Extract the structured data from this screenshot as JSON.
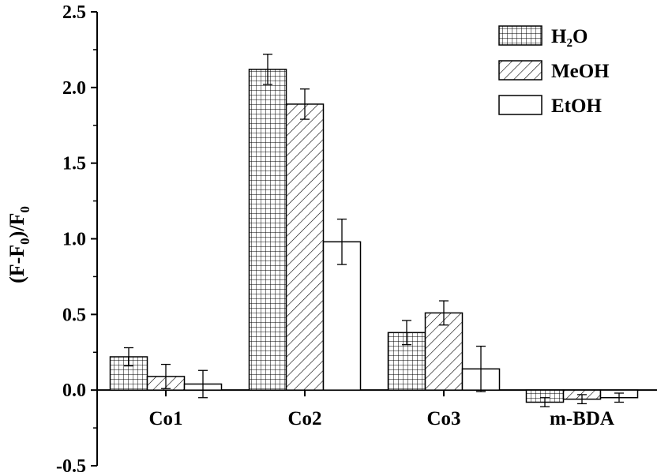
{
  "chart_data": {
    "type": "bar",
    "categories": [
      "Co1",
      "Co2",
      "Co3",
      "m-BDA"
    ],
    "series": [
      {
        "name": "H₂O",
        "values": [
          0.22,
          2.12,
          0.38,
          -0.08
        ],
        "errors": [
          0.06,
          0.1,
          0.08,
          0.03
        ],
        "pattern": "grid"
      },
      {
        "name": "MeOH",
        "values": [
          0.09,
          1.89,
          0.51,
          -0.06
        ],
        "errors": [
          0.08,
          0.1,
          0.08,
          0.03
        ],
        "pattern": "diagonal"
      },
      {
        "name": "EtOH",
        "values": [
          0.04,
          0.98,
          0.14,
          -0.05
        ],
        "errors": [
          0.09,
          0.15,
          0.15,
          0.03
        ],
        "pattern": "empty"
      }
    ],
    "ylabel": {
      "open": "(F-F",
      "sub1": "0",
      "mid": ")/F",
      "sub2": "0"
    },
    "ylim": [
      -0.5,
      2.5
    ],
    "yticks": [
      "-0.5",
      "0.0",
      "0.5",
      "1.0",
      "1.5",
      "2.0",
      "2.5"
    ],
    "legend_position": "top-right",
    "grid": false
  }
}
